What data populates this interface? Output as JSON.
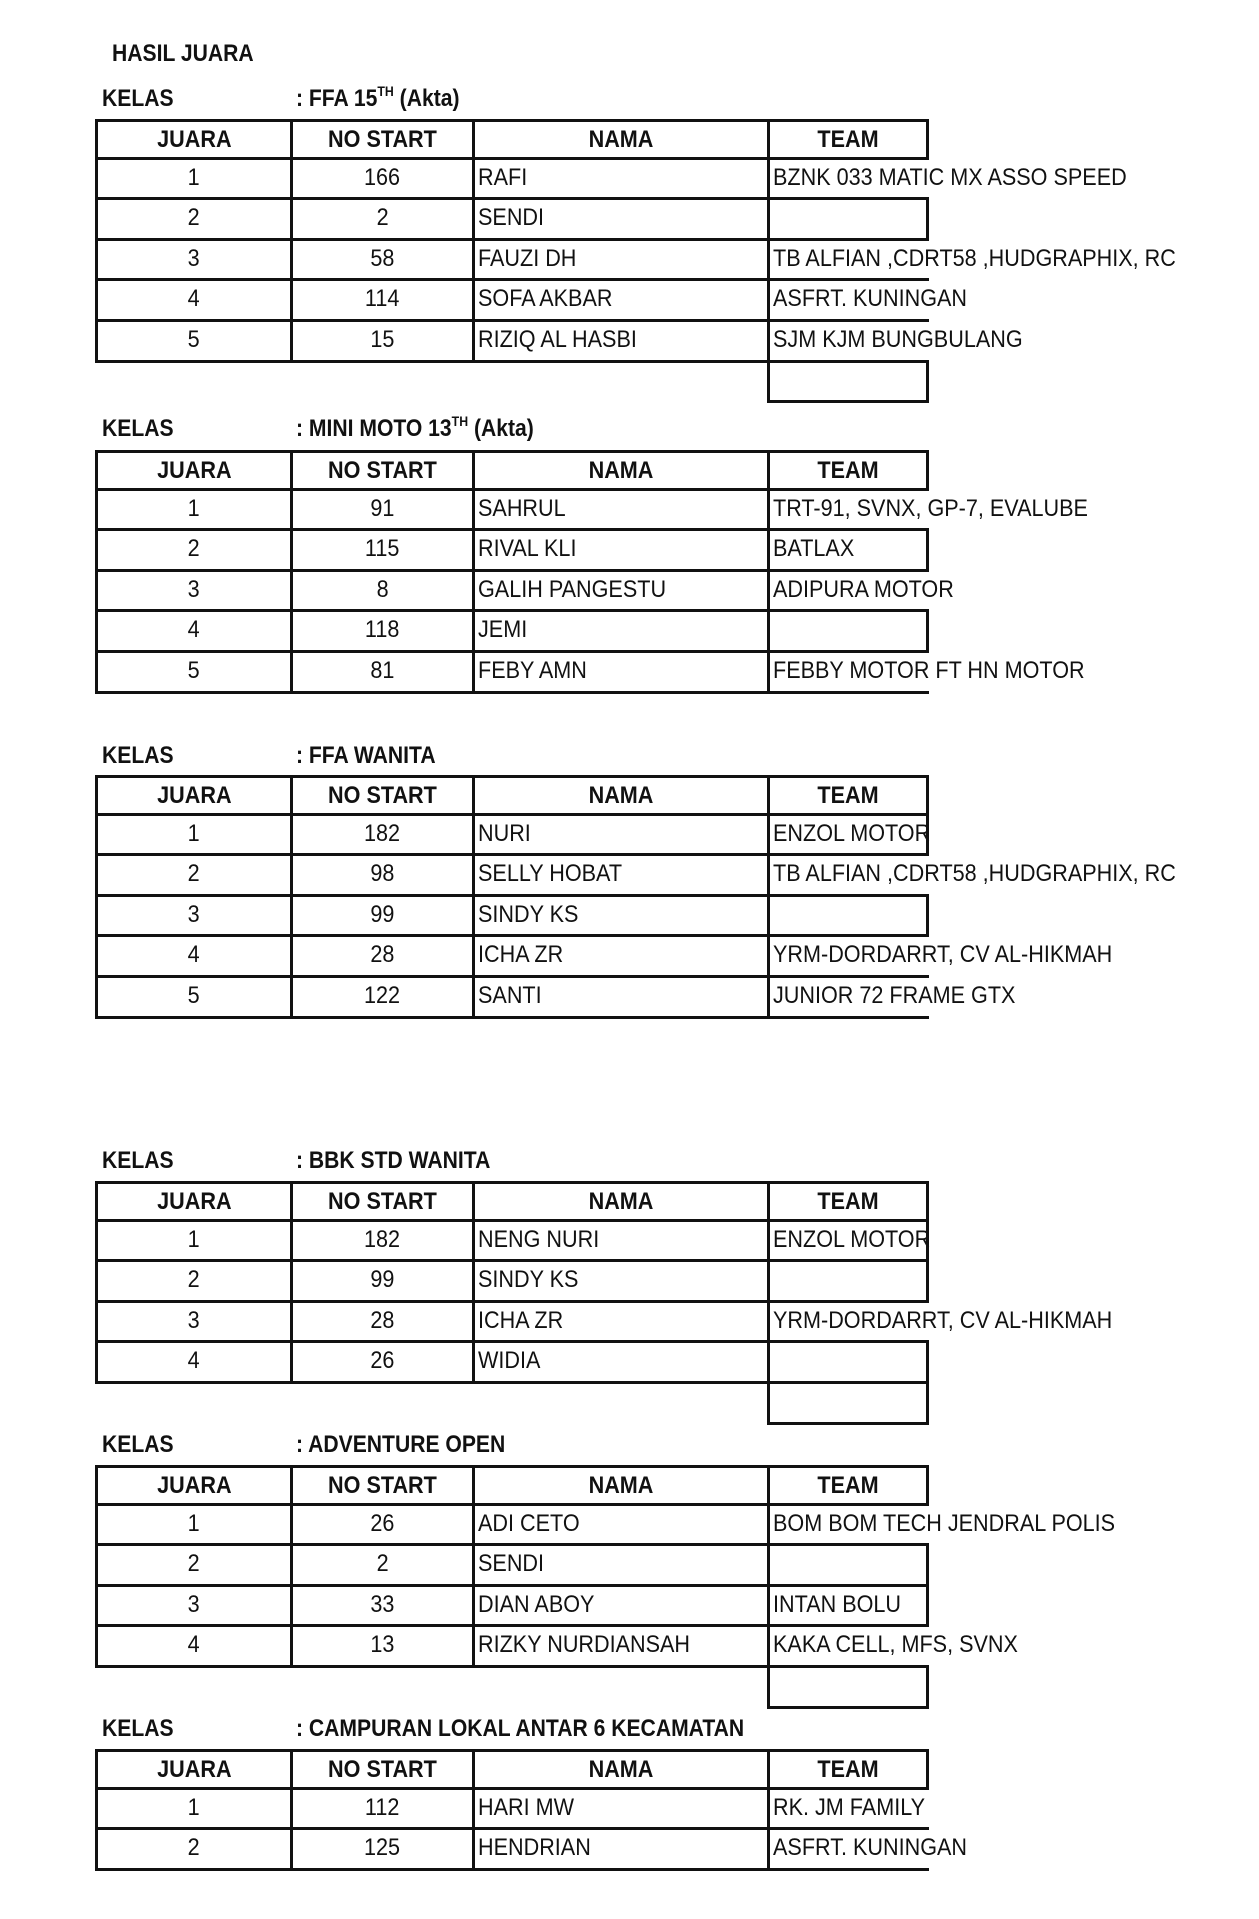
{
  "title": "HASIL JUARA",
  "kelas_label": "KELAS",
  "headers": {
    "juara": "JUARA",
    "no_start": "NO START",
    "nama": "NAMA",
    "team": "TEAM"
  },
  "sections": [
    {
      "kelas": {
        "main": ": FFA 15",
        "sup": "TH",
        "suffix": " (Akta)"
      },
      "extra_team_boxes": 1,
      "rows": [
        {
          "juara": "1",
          "no_start": "166",
          "nama": "RAFI",
          "team": "BZNK 033 MATIC MX ASSO SPEED"
        },
        {
          "juara": "2",
          "no_start": "2",
          "nama": "SENDI",
          "team": ""
        },
        {
          "juara": "3",
          "no_start": "58",
          "nama": "FAUZI DH",
          "team": "TB ALFIAN ,CDRT58 ,HUDGRAPHIX, RC"
        },
        {
          "juara": "4",
          "no_start": "114",
          "nama": "SOFA AKBAR",
          "team": "ASFRT. KUNINGAN"
        },
        {
          "juara": "5",
          "no_start": "15",
          "nama": "RIZIQ AL HASBI",
          "team": "SJM KJM BUNGBULANG"
        }
      ]
    },
    {
      "kelas": {
        "main": ": MINI MOTO 13",
        "sup": "TH",
        "suffix": " (Akta)"
      },
      "extra_team_boxes": 0,
      "rows": [
        {
          "juara": "1",
          "no_start": "91",
          "nama": "SAHRUL",
          "team": "TRT-91, SVNX, GP-7, EVALUBE"
        },
        {
          "juara": "2",
          "no_start": "115",
          "nama": "RIVAL KLI",
          "team": "BATLAX"
        },
        {
          "juara": "3",
          "no_start": "8",
          "nama": "GALIH PANGESTU",
          "team": "ADIPURA MOTOR"
        },
        {
          "juara": "4",
          "no_start": "118",
          "nama": "JEMI",
          "team": ""
        },
        {
          "juara": "5",
          "no_start": "81",
          "nama": "FEBY AMN",
          "team": "FEBBY MOTOR FT HN MOTOR"
        }
      ]
    },
    {
      "kelas": {
        "main": ": FFA WANITA",
        "sup": "",
        "suffix": ""
      },
      "extra_team_boxes": 0,
      "rows": [
        {
          "juara": "1",
          "no_start": "182",
          "nama": "NURI",
          "team": "ENZOL MOTOR"
        },
        {
          "juara": "2",
          "no_start": "98",
          "nama": "SELLY HOBAT",
          "team": "TB ALFIAN ,CDRT58 ,HUDGRAPHIX, RC"
        },
        {
          "juara": "3",
          "no_start": "99",
          "nama": "SINDY KS",
          "team": ""
        },
        {
          "juara": "4",
          "no_start": "28",
          "nama": "ICHA ZR",
          "team": "YRM-DORDARRT, CV AL-HIKMAH"
        },
        {
          "juara": "5",
          "no_start": "122",
          "nama": "SANTI",
          "team": "JUNIOR 72 FRAME GTX"
        }
      ]
    },
    {
      "kelas": {
        "main": ": BBK STD WANITA",
        "sup": "",
        "suffix": ""
      },
      "extra_team_boxes": 1,
      "rows": [
        {
          "juara": "1",
          "no_start": "182",
          "nama": "NENG NURI",
          "team": "ENZOL MOTOR"
        },
        {
          "juara": "2",
          "no_start": "99",
          "nama": "SINDY KS",
          "team": ""
        },
        {
          "juara": "3",
          "no_start": "28",
          "nama": "ICHA ZR",
          "team": "YRM-DORDARRT, CV AL-HIKMAH"
        },
        {
          "juara": "4",
          "no_start": "26",
          "nama": "WIDIA",
          "team": ""
        }
      ]
    },
    {
      "kelas": {
        "main": ": ADVENTURE OPEN",
        "sup": "",
        "suffix": ""
      },
      "extra_team_boxes": 1,
      "rows": [
        {
          "juara": "1",
          "no_start": "26",
          "nama": "ADI CETO",
          "team": "BOM BOM TECH JENDRAL POLIS"
        },
        {
          "juara": "2",
          "no_start": "2",
          "nama": "SENDI",
          "team": ""
        },
        {
          "juara": "3",
          "no_start": "33",
          "nama": "DIAN ABOY",
          "team": "INTAN BOLU"
        },
        {
          "juara": "4",
          "no_start": "13",
          "nama": "RIZKY NURDIANSAH",
          "team": "KAKA CELL, MFS, SVNX"
        }
      ]
    },
    {
      "kelas": {
        "main": ": CAMPURAN LOKAL ANTAR 6 KECAMATAN",
        "sup": "",
        "suffix": ""
      },
      "extra_team_boxes": 0,
      "rows": [
        {
          "juara": "1",
          "no_start": "112",
          "nama": "HARI MW",
          "team": "RK. JM FAMILY"
        },
        {
          "juara": "2",
          "no_start": "125",
          "nama": "HENDRIAN",
          "team": "ASFRT. KUNINGAN"
        }
      ]
    }
  ]
}
